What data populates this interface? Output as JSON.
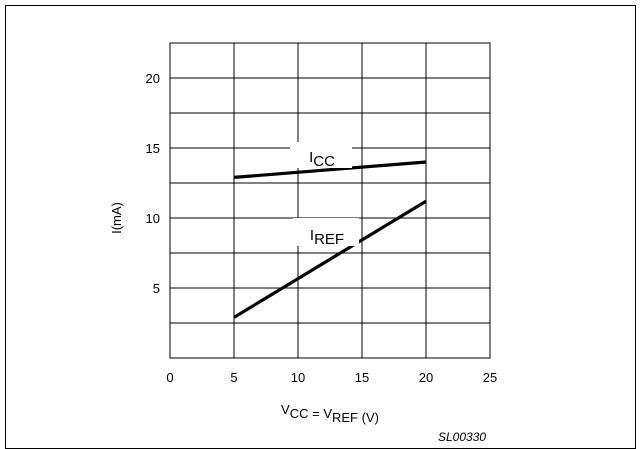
{
  "chart_data": {
    "type": "line",
    "title": "",
    "xlabel": {
      "parts": [
        {
          "text": "V",
          "sub": "CC"
        },
        {
          "text": " = V",
          "sub": "REF"
        },
        {
          "text": " (V)",
          "sub": ""
        }
      ]
    },
    "ylabel": "I(mA)",
    "xlim": [
      0,
      25
    ],
    "ylim": [
      0,
      22.5
    ],
    "x_ticks": [
      0,
      5,
      10,
      15,
      20,
      25
    ],
    "x_tick_labels": [
      "0",
      "5",
      "10",
      "15",
      "20",
      "25"
    ],
    "y_ticks": [
      5,
      10,
      15,
      20
    ],
    "y_tick_labels": [
      "5",
      "10",
      "15",
      "20"
    ],
    "grid": true,
    "series": [
      {
        "name": "I",
        "sub": "CC",
        "x": [
          5,
          20
        ],
        "y": [
          12.9,
          14.0
        ]
      },
      {
        "name": "I",
        "sub": "REF",
        "x": [
          5,
          20
        ],
        "y": [
          2.9,
          11.2
        ]
      }
    ]
  },
  "figure_id": "SL00330",
  "line_color": "#000000",
  "grid_color": "#000000"
}
